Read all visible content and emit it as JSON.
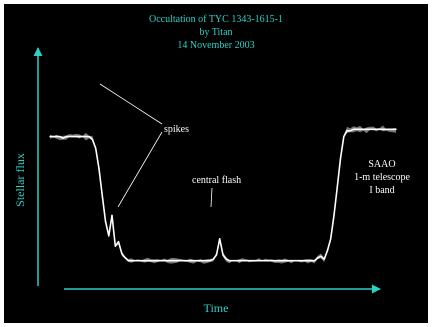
{
  "chart_data": {
    "type": "line",
    "title_lines": [
      "Occultation of TYC 1343-1615-1",
      "by Titan",
      "14 November 2003"
    ],
    "xlabel": "Time",
    "ylabel": "Stellar flux",
    "grid": false,
    "legend": "none",
    "annotations": {
      "spikes": "spikes",
      "central_flash": "central flash",
      "observatory": [
        "SAAO",
        "1-m telescope",
        "I band"
      ]
    },
    "series": [
      {
        "values": [
          0.9,
          0.9,
          0.9,
          0.9,
          0.89,
          0.9,
          0.9,
          0.9,
          0.9,
          0.9,
          0.9,
          0.9,
          0.9,
          0.88,
          0.82,
          0.68,
          0.5,
          0.32,
          0.22,
          0.36,
          0.15,
          0.18,
          0.1,
          0.07,
          0.05,
          0.05,
          0.05,
          0.05,
          0.05,
          0.05,
          0.05,
          0.05,
          0.05,
          0.05,
          0.05,
          0.05,
          0.05,
          0.05,
          0.05,
          0.05,
          0.05,
          0.05,
          0.05,
          0.05,
          0.05,
          0.05,
          0.05,
          0.05,
          0.05,
          0.05,
          0.06,
          0.09,
          0.2,
          0.09,
          0.06,
          0.05,
          0.05,
          0.05,
          0.05,
          0.05,
          0.05,
          0.05,
          0.05,
          0.05,
          0.05,
          0.05,
          0.05,
          0.05,
          0.05,
          0.05,
          0.05,
          0.05,
          0.05,
          0.05,
          0.05,
          0.05,
          0.05,
          0.05,
          0.05,
          0.05,
          0.05,
          0.05,
          0.07,
          0.08,
          0.06,
          0.12,
          0.2,
          0.36,
          0.55,
          0.75,
          0.9,
          0.94,
          0.94,
          0.95,
          0.95,
          0.95,
          0.95,
          0.95,
          0.95,
          0.95,
          0.95,
          0.95,
          0.95,
          0.95,
          0.95,
          0.95,
          0.95
        ]
      }
    ]
  }
}
